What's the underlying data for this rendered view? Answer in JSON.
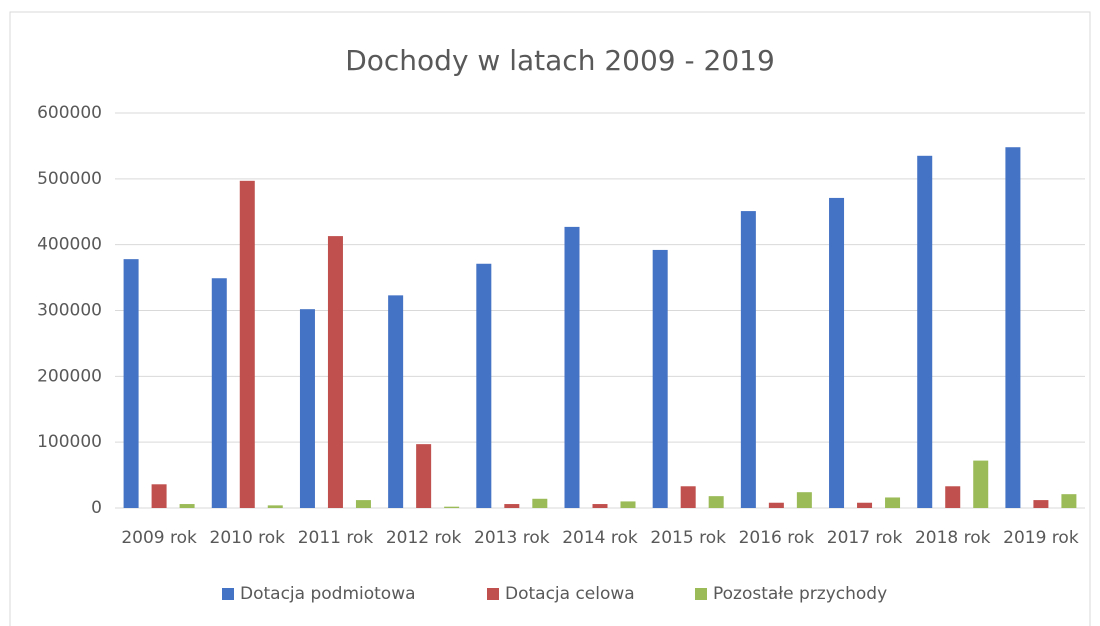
{
  "chart_data": {
    "type": "bar",
    "title": "Dochody w latach 2009 - 2019",
    "categories": [
      "2009 rok",
      "2010 rok",
      "2011 rok",
      "2012 rok",
      "2013 rok",
      "2014 rok",
      "2015 rok",
      "2016 rok",
      "2017 rok",
      "2018 rok",
      "2019 rok"
    ],
    "series": [
      {
        "name": "Dotacja podmiotowa",
        "color": "#4472c4",
        "values": [
          378000,
          349000,
          302000,
          323000,
          371000,
          427000,
          392000,
          451000,
          471000,
          535000,
          548000
        ]
      },
      {
        "name": "Dotacja celowa",
        "color": "#c0504d",
        "values": [
          36000,
          497000,
          413000,
          97000,
          6000,
          6000,
          33000,
          8000,
          8000,
          33000,
          12000
        ]
      },
      {
        "name": "Pozostałe przychody",
        "color": "#9bbb59",
        "values": [
          6000,
          4000,
          12000,
          2000,
          14000,
          10000,
          18000,
          24000,
          16000,
          72000,
          21000
        ]
      }
    ],
    "ylim": [
      0,
      600000
    ],
    "yticks": [
      0,
      100000,
      200000,
      300000,
      400000,
      500000,
      600000
    ],
    "grid": true,
    "legend": "bottom"
  }
}
